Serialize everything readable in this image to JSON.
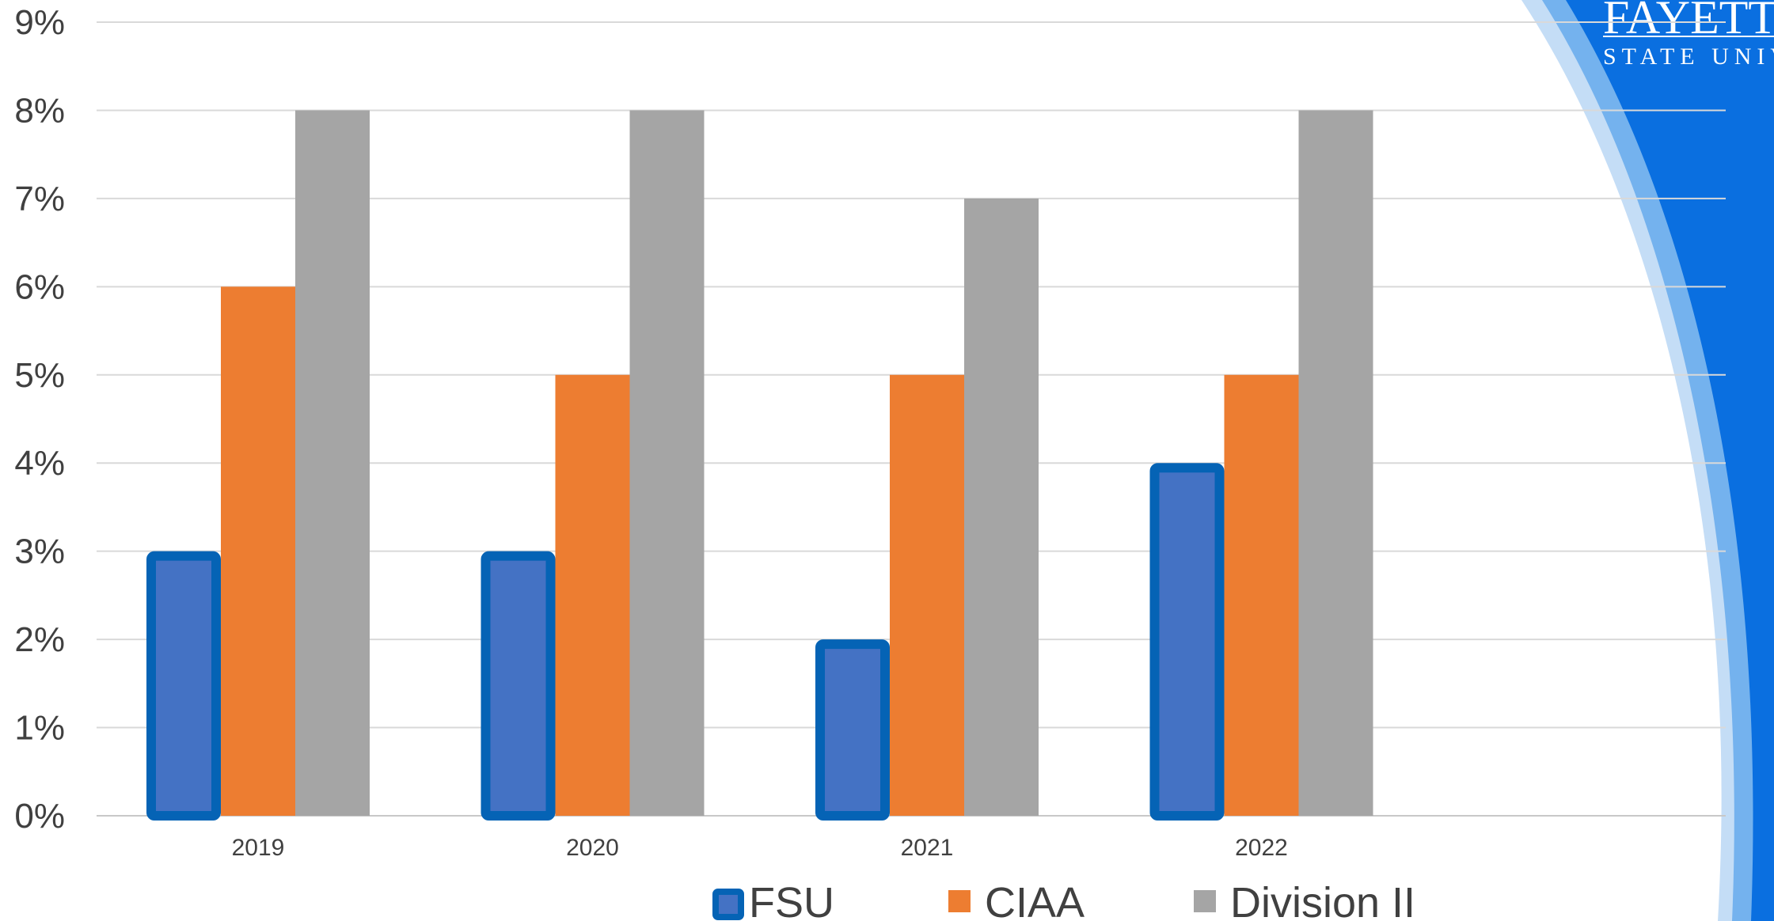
{
  "chart_data": {
    "type": "bar",
    "title": "",
    "xlabel": "",
    "ylabel": "",
    "categories": [
      "2019",
      "2020",
      "2021",
      "2022"
    ],
    "series": [
      {
        "name": "FSU",
        "values": [
          3,
          3,
          2,
          4
        ],
        "color": "#4472C4",
        "border_color": "#0563B5"
      },
      {
        "name": "CIAA",
        "values": [
          6,
          5,
          5,
          5
        ],
        "color": "#ED7D31"
      },
      {
        "name": "Division II",
        "values": [
          8,
          8,
          7,
          8
        ],
        "color": "#A5A5A5"
      }
    ],
    "ylim": [
      0,
      9
    ],
    "yticks": [
      "0%",
      "1%",
      "2%",
      "3%",
      "4%",
      "5%",
      "6%",
      "7%",
      "8%",
      "9%"
    ],
    "grid": true,
    "legend": "bottom"
  },
  "branding": {
    "line1": "FAYETTE",
    "line2": "STATE UNIV",
    "colors": {
      "primary": "#0A6FE0",
      "mid": "#74B2EE",
      "light": "#C4DDF6"
    }
  }
}
